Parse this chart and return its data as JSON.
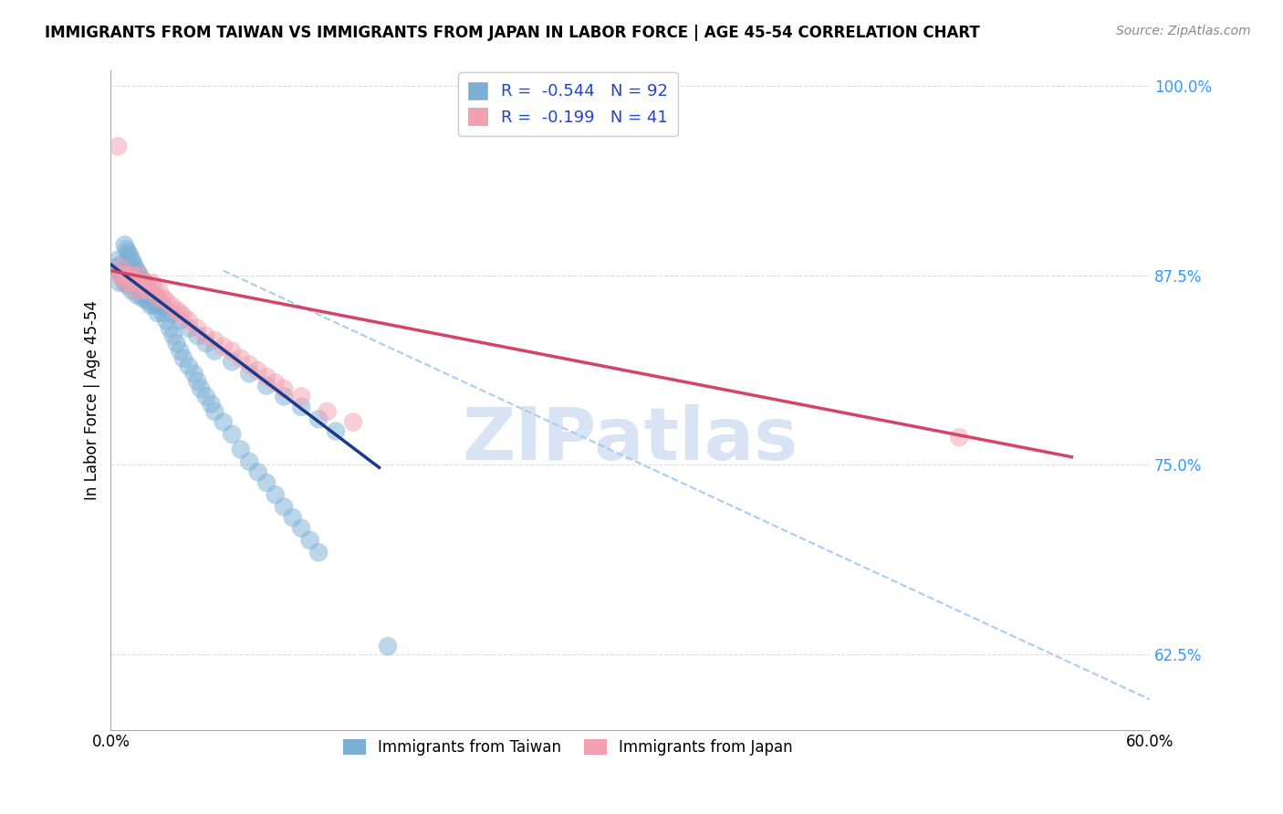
{
  "title": "IMMIGRANTS FROM TAIWAN VS IMMIGRANTS FROM JAPAN IN LABOR FORCE | AGE 45-54 CORRELATION CHART",
  "source": "Source: ZipAtlas.com",
  "ylabel": "In Labor Force | Age 45-54",
  "xmin": 0.0,
  "xmax": 0.6,
  "ymin": 0.575,
  "ymax": 1.01,
  "taiwan_R": -0.544,
  "taiwan_N": 92,
  "japan_R": -0.199,
  "japan_N": 41,
  "taiwan_color": "#7bafd4",
  "japan_color": "#f4a0b0",
  "taiwan_line_color": "#1a3a8a",
  "japan_line_color": "#d44466",
  "dashed_line_color": "#aaccee",
  "background_color": "#ffffff",
  "grid_color": "#dddddd",
  "taiwan_scatter_x": [
    0.003,
    0.004,
    0.005,
    0.005,
    0.006,
    0.006,
    0.007,
    0.008,
    0.008,
    0.009,
    0.01,
    0.01,
    0.011,
    0.012,
    0.012,
    0.013,
    0.014,
    0.015,
    0.015,
    0.016,
    0.017,
    0.018,
    0.018,
    0.019,
    0.02,
    0.02,
    0.021,
    0.022,
    0.023,
    0.024,
    0.025,
    0.026,
    0.027,
    0.028,
    0.03,
    0.032,
    0.034,
    0.036,
    0.038,
    0.04,
    0.042,
    0.045,
    0.048,
    0.05,
    0.052,
    0.055,
    0.058,
    0.06,
    0.065,
    0.07,
    0.075,
    0.08,
    0.085,
    0.09,
    0.095,
    0.1,
    0.105,
    0.11,
    0.115,
    0.12,
    0.008,
    0.009,
    0.01,
    0.011,
    0.012,
    0.013,
    0.014,
    0.015,
    0.016,
    0.017,
    0.018,
    0.019,
    0.02,
    0.022,
    0.024,
    0.026,
    0.028,
    0.03,
    0.035,
    0.04,
    0.045,
    0.05,
    0.055,
    0.06,
    0.07,
    0.08,
    0.09,
    0.1,
    0.11,
    0.12,
    0.13,
    0.16
  ],
  "taiwan_scatter_y": [
    0.88,
    0.885,
    0.878,
    0.87,
    0.875,
    0.882,
    0.875,
    0.87,
    0.878,
    0.873,
    0.875,
    0.868,
    0.87,
    0.872,
    0.865,
    0.875,
    0.87,
    0.868,
    0.862,
    0.87,
    0.865,
    0.868,
    0.86,
    0.865,
    0.86,
    0.87,
    0.858,
    0.862,
    0.855,
    0.86,
    0.855,
    0.858,
    0.85,
    0.855,
    0.85,
    0.845,
    0.84,
    0.835,
    0.83,
    0.825,
    0.82,
    0.815,
    0.81,
    0.805,
    0.8,
    0.795,
    0.79,
    0.785,
    0.778,
    0.77,
    0.76,
    0.752,
    0.745,
    0.738,
    0.73,
    0.722,
    0.715,
    0.708,
    0.7,
    0.692,
    0.895,
    0.892,
    0.89,
    0.888,
    0.885,
    0.883,
    0.88,
    0.878,
    0.876,
    0.874,
    0.872,
    0.87,
    0.868,
    0.865,
    0.862,
    0.86,
    0.858,
    0.855,
    0.85,
    0.845,
    0.84,
    0.835,
    0.83,
    0.825,
    0.818,
    0.81,
    0.802,
    0.795,
    0.788,
    0.78,
    0.772,
    0.63
  ],
  "japan_scatter_x": [
    0.004,
    0.005,
    0.006,
    0.007,
    0.008,
    0.01,
    0.011,
    0.012,
    0.014,
    0.015,
    0.016,
    0.018,
    0.019,
    0.02,
    0.022,
    0.024,
    0.025,
    0.027,
    0.028,
    0.03,
    0.032,
    0.035,
    0.038,
    0.04,
    0.042,
    0.045,
    0.05,
    0.055,
    0.06,
    0.065,
    0.07,
    0.075,
    0.08,
    0.085,
    0.09,
    0.095,
    0.1,
    0.11,
    0.125,
    0.14,
    0.49
  ],
  "japan_scatter_y": [
    0.96,
    0.875,
    0.88,
    0.875,
    0.87,
    0.875,
    0.87,
    0.875,
    0.87,
    0.865,
    0.875,
    0.87,
    0.865,
    0.87,
    0.865,
    0.87,
    0.865,
    0.86,
    0.865,
    0.86,
    0.858,
    0.855,
    0.852,
    0.85,
    0.848,
    0.845,
    0.84,
    0.835,
    0.832,
    0.828,
    0.825,
    0.82,
    0.816,
    0.812,
    0.808,
    0.804,
    0.8,
    0.795,
    0.785,
    0.778,
    0.768
  ],
  "taiwan_line_x": [
    0.0,
    0.155
  ],
  "taiwan_line_y": [
    0.882,
    0.748
  ],
  "japan_line_x": [
    0.0,
    0.555
  ],
  "japan_line_y": [
    0.878,
    0.755
  ],
  "dashed_line_x": [
    0.065,
    0.6
  ],
  "dashed_line_y": [
    0.878,
    0.595
  ],
  "ytick_vals": [
    1.0,
    0.875,
    0.75,
    0.625
  ],
  "ytick_labels": [
    "100.0%",
    "87.5%",
    "75.0%",
    "62.5%"
  ]
}
